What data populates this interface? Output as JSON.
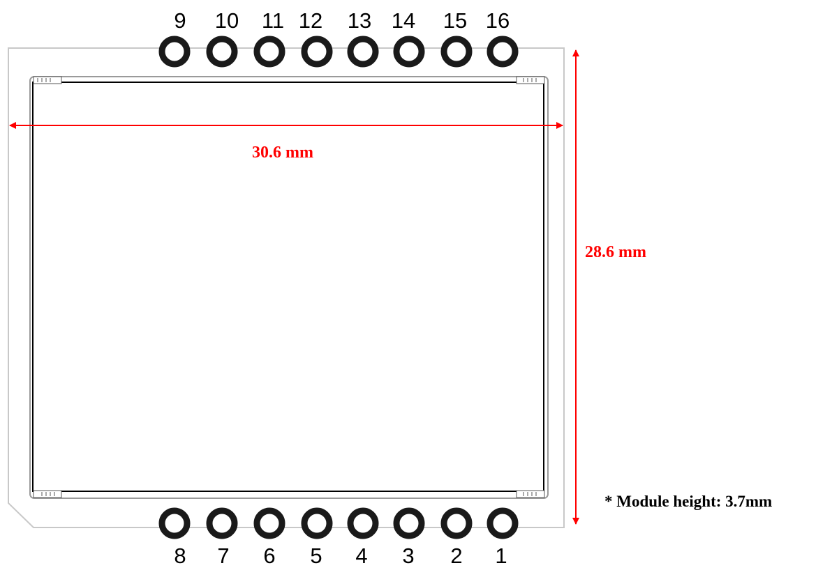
{
  "top_pins": [
    "9",
    "10",
    "11",
    "12",
    "13",
    "14",
    "15",
    "16"
  ],
  "bottom_pins": [
    "8",
    "7",
    "6",
    "5",
    "4",
    "3",
    "2",
    "1"
  ],
  "width_label": "30.6 mm",
  "height_label": "28.6 mm",
  "note": "* Module height: 3.7mm",
  "colors": {
    "dimension": "#ff0000",
    "outline": "#000000",
    "board": "#c8c8c8",
    "pad": "#1a1a1a"
  }
}
